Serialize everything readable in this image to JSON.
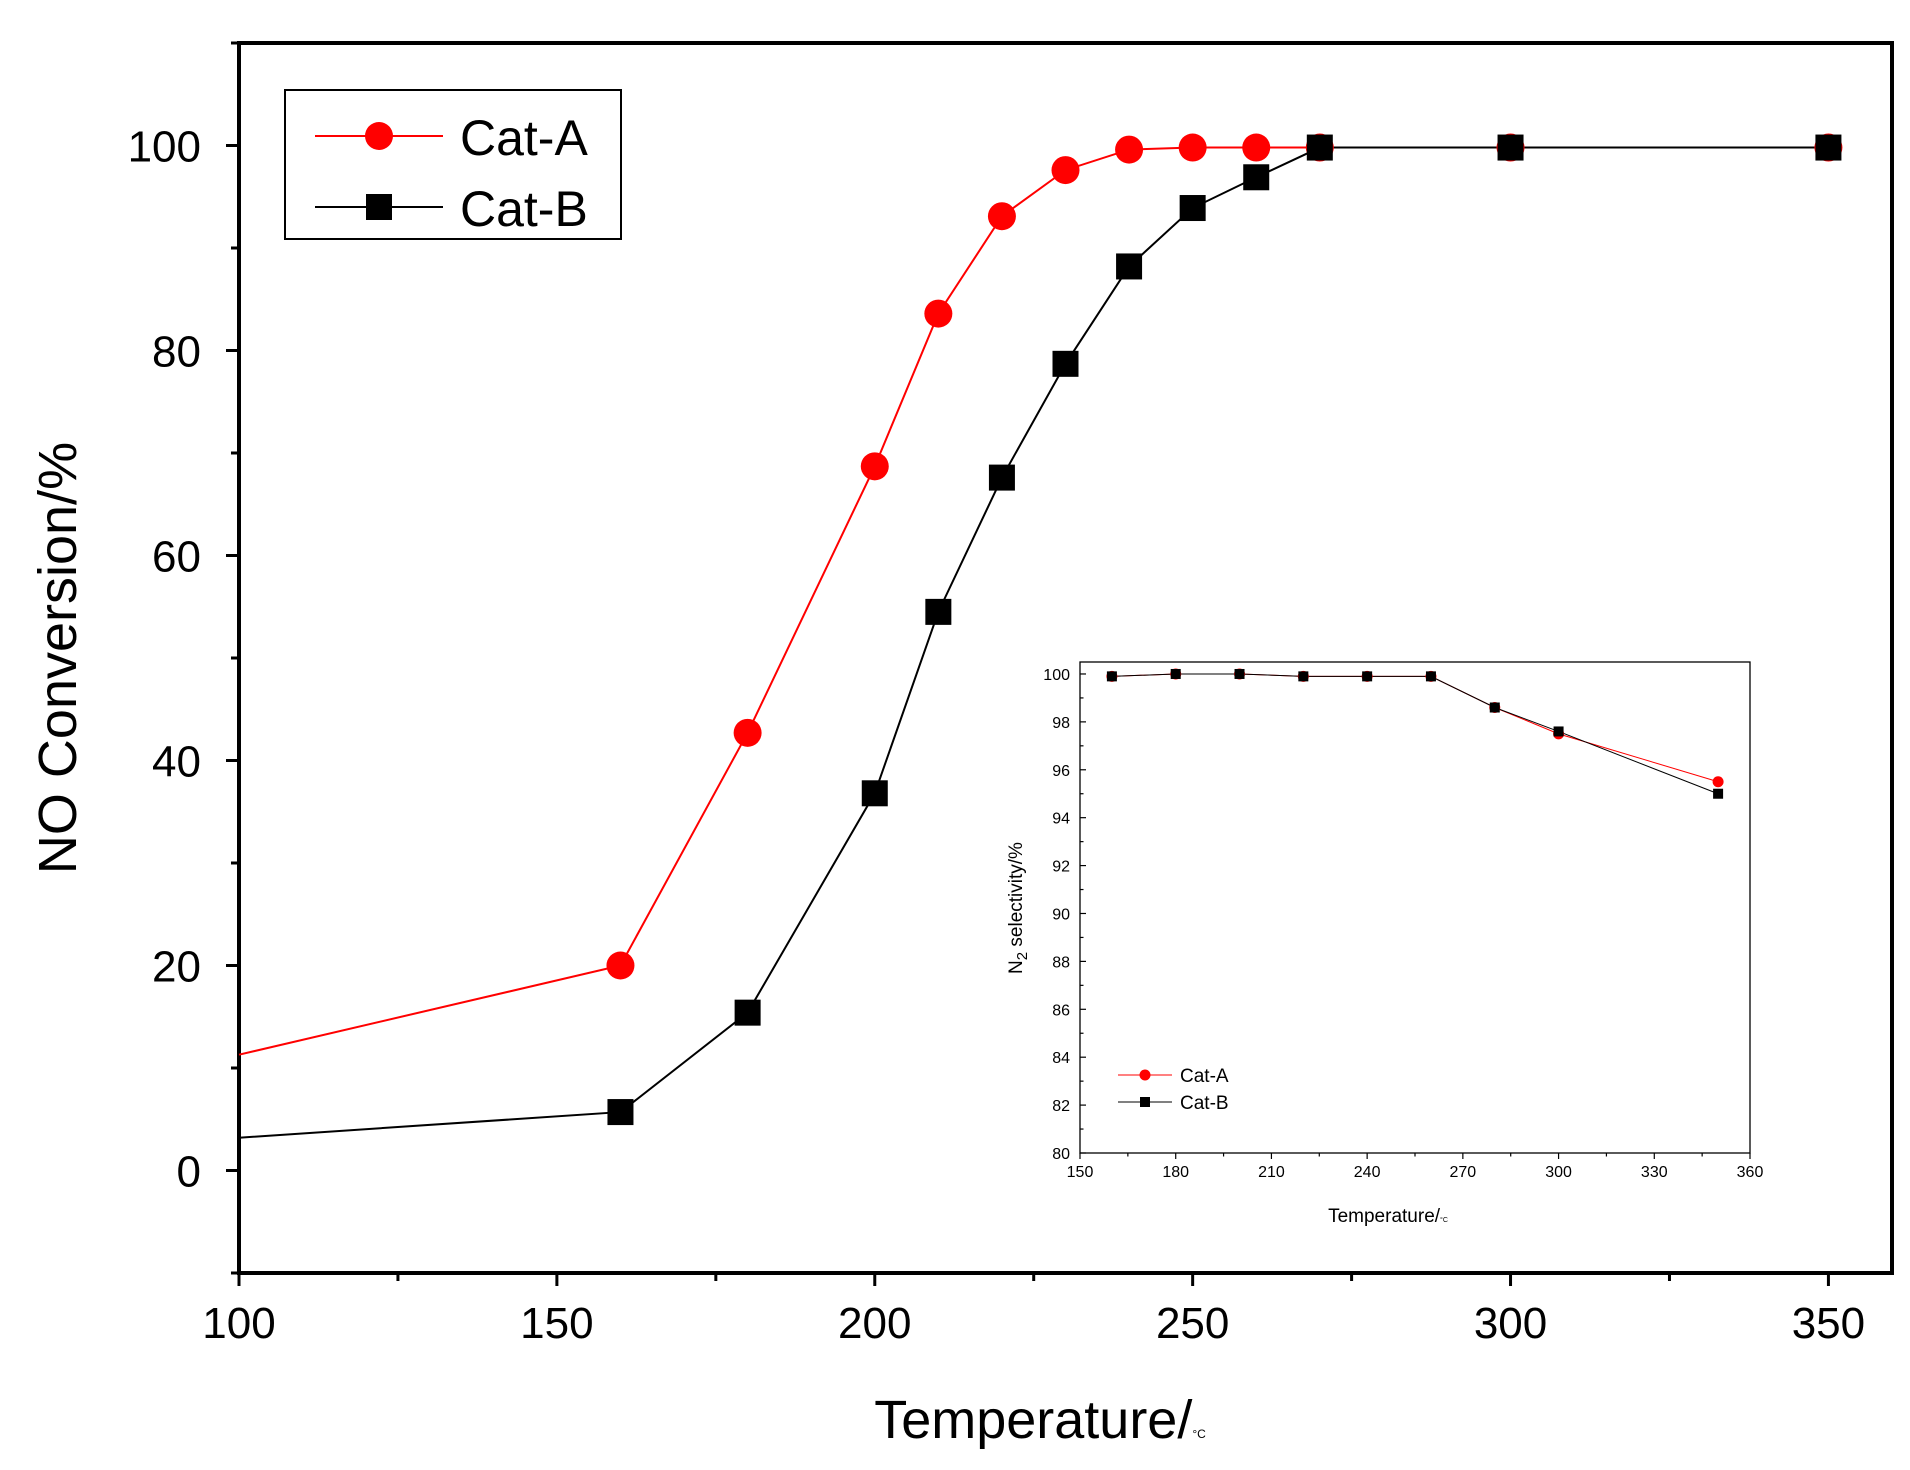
{
  "chart_data": [
    {
      "type": "line",
      "title": "",
      "xlabel": "Temperature/",
      "xlabel_unit": "°C",
      "ylabel": "NO Conversion/%",
      "xlim": [
        100,
        360
      ],
      "ylim": [
        -10,
        110
      ],
      "xticks": [
        100,
        150,
        200,
        250,
        300,
        350
      ],
      "yticks": [
        0,
        20,
        40,
        60,
        80,
        100
      ],
      "grid": false,
      "legend_position": "top-left",
      "series": [
        {
          "name": "Cat-A",
          "color": "#ff0000",
          "marker": "circle",
          "x": [
            160,
            180,
            200,
            210,
            220,
            230,
            240,
            250,
            260,
            270,
            300,
            350
          ],
          "y": [
            20.0,
            42.7,
            68.7,
            83.6,
            93.1,
            97.6,
            99.6,
            99.8,
            99.8,
            99.8,
            99.8,
            99.8
          ],
          "line_start": [
            100,
            11.3
          ]
        },
        {
          "name": "Cat-B",
          "color": "#000000",
          "marker": "square",
          "x": [
            160,
            180,
            200,
            210,
            220,
            230,
            240,
            250,
            260,
            270,
            300,
            350
          ],
          "y": [
            5.7,
            15.4,
            36.8,
            54.5,
            67.6,
            78.7,
            88.2,
            93.9,
            96.9,
            99.8,
            99.8,
            99.8
          ],
          "line_start": [
            100,
            3.2
          ]
        }
      ]
    },
    {
      "type": "line",
      "title": "",
      "xlabel": "Temperature/",
      "xlabel_unit": "°C",
      "ylabel": "N2 selectivity/%",
      "ylabel_parts": [
        "N",
        "2",
        " selectivity/%"
      ],
      "xlim": [
        150,
        360
      ],
      "ylim": [
        80,
        100.5
      ],
      "xticks": [
        150,
        180,
        210,
        240,
        270,
        300,
        330,
        360
      ],
      "yticks": [
        80,
        82,
        84,
        86,
        88,
        90,
        92,
        94,
        96,
        98,
        100
      ],
      "grid": false,
      "legend_position": "bottom-left",
      "series": [
        {
          "name": "Cat-A",
          "color": "#ff0000",
          "marker": "circle",
          "x": [
            160,
            180,
            200,
            220,
            240,
            260,
            280,
            300,
            350
          ],
          "y": [
            99.9,
            100.0,
            100.0,
            99.9,
            99.9,
            99.9,
            98.6,
            97.5,
            95.5
          ]
        },
        {
          "name": "Cat-B",
          "color": "#000000",
          "marker": "square",
          "x": [
            160,
            180,
            200,
            220,
            240,
            260,
            280,
            300,
            350
          ],
          "y": [
            99.9,
            100.0,
            100.0,
            99.9,
            99.9,
            99.9,
            98.6,
            97.6,
            95.0
          ]
        }
      ]
    }
  ]
}
